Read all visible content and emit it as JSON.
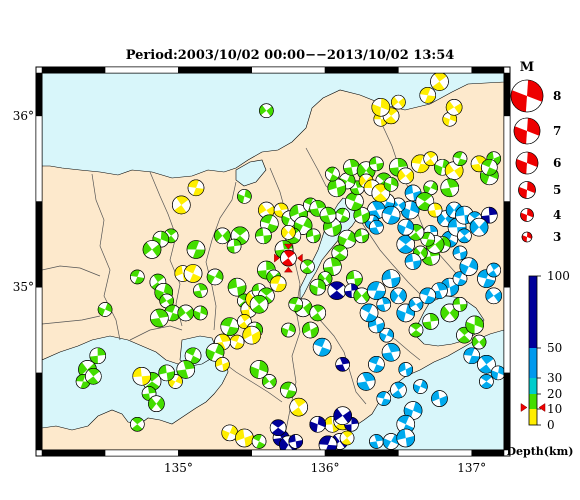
{
  "title": "Period:2003/10/02 00:00−−2013/10/02 13:54",
  "axes": {
    "lat_labels": [
      {
        "text": "36°",
        "value": 36
      },
      {
        "text": "35°",
        "value": 35
      }
    ],
    "lon_labels": [
      {
        "text": "135°",
        "value": 135
      },
      {
        "text": "136°",
        "value": 136
      },
      {
        "text": "137°",
        "value": 137
      }
    ]
  },
  "magnitude_legend": {
    "title": "M",
    "items": [
      {
        "label": "8",
        "m": 8
      },
      {
        "label": "7",
        "m": 7
      },
      {
        "label": "6",
        "m": 6
      },
      {
        "label": "5",
        "m": 5
      },
      {
        "label": "4",
        "m": 4
      },
      {
        "label": "3",
        "m": 3
      }
    ]
  },
  "depth_scale": {
    "title": "Depth(km)",
    "ticks": [
      {
        "label": "100",
        "v": 100
      },
      {
        "label": "50",
        "v": 50
      },
      {
        "label": "30",
        "v": 30
      },
      {
        "label": "20",
        "v": 20
      },
      {
        "label": "10",
        "v": 10
      },
      {
        "label": "0",
        "v": 0
      }
    ],
    "bands": [
      {
        "from": 0,
        "to": 10,
        "color": "#ffee00"
      },
      {
        "from": 10,
        "to": 20,
        "color": "#44dd00"
      },
      {
        "from": 20,
        "to": 30,
        "color": "#00cccc"
      },
      {
        "from": 30,
        "to": 50,
        "color": "#0099ee"
      },
      {
        "from": 50,
        "to": 100,
        "color": "#000099"
      }
    ],
    "current_event_depth": 11
  },
  "colors": {
    "land": "#fde9cc",
    "sea": "#d8f6fa",
    "highlight": "#ee0000"
  },
  "events": [
    {
      "lon": 135.6,
      "lat": 36.03,
      "c": "g"
    },
    {
      "lon": 135.12,
      "lat": 35.58,
      "c": "y"
    },
    {
      "lon": 135.02,
      "lat": 35.48,
      "c": "y"
    },
    {
      "lon": 135.45,
      "lat": 35.53,
      "c": "g"
    },
    {
      "lon": 135.6,
      "lat": 35.45,
      "c": "y"
    },
    {
      "lon": 135.62,
      "lat": 35.37,
      "c": "g"
    },
    {
      "lon": 135.7,
      "lat": 35.45,
      "c": "y"
    },
    {
      "lon": 135.76,
      "lat": 35.4,
      "c": "g"
    },
    {
      "lon": 135.82,
      "lat": 35.43,
      "c": "g"
    },
    {
      "lon": 135.9,
      "lat": 35.48,
      "c": "g"
    },
    {
      "lon": 135.95,
      "lat": 35.46,
      "c": "g"
    },
    {
      "lon": 135.85,
      "lat": 35.36,
      "c": "g"
    },
    {
      "lon": 135.92,
      "lat": 35.3,
      "c": "g"
    },
    {
      "lon": 135.78,
      "lat": 35.3,
      "c": "g"
    },
    {
      "lon": 135.72,
      "lat": 35.22,
      "c": "g"
    },
    {
      "lon": 135.75,
      "lat": 35.32,
      "c": "y"
    },
    {
      "lon": 135.58,
      "lat": 35.3,
      "c": "g"
    },
    {
      "lon": 135.42,
      "lat": 35.3,
      "c": "g"
    },
    {
      "lon": 135.38,
      "lat": 35.24,
      "c": "g"
    },
    {
      "lon": 135.3,
      "lat": 35.3,
      "c": "g"
    },
    {
      "lon": 135.12,
      "lat": 35.22,
      "c": "g"
    },
    {
      "lon": 134.95,
      "lat": 35.3,
      "c": "g"
    },
    {
      "lon": 134.88,
      "lat": 35.28,
      "c": "g"
    },
    {
      "lon": 134.82,
      "lat": 35.22,
      "c": "g"
    },
    {
      "lon": 134.72,
      "lat": 35.06,
      "c": "g"
    },
    {
      "lon": 134.86,
      "lat": 35.03,
      "c": "g"
    },
    {
      "lon": 134.9,
      "lat": 34.97,
      "c": "g"
    },
    {
      "lon": 134.92,
      "lat": 34.92,
      "c": "g"
    },
    {
      "lon": 134.96,
      "lat": 34.85,
      "c": "g"
    },
    {
      "lon": 134.87,
      "lat": 34.82,
      "c": "g"
    },
    {
      "lon": 134.5,
      "lat": 34.87,
      "c": "g"
    },
    {
      "lon": 135.03,
      "lat": 35.08,
      "c": "y"
    },
    {
      "lon": 135.1,
      "lat": 35.08,
      "c": "y"
    },
    {
      "lon": 135.15,
      "lat": 34.98,
      "c": "g"
    },
    {
      "lon": 135.25,
      "lat": 35.06,
      "c": "g"
    },
    {
      "lon": 135.4,
      "lat": 35.0,
      "c": "g"
    },
    {
      "lon": 135.45,
      "lat": 34.92,
      "c": "g"
    },
    {
      "lon": 135.48,
      "lat": 34.87,
      "c": "y"
    },
    {
      "lon": 135.52,
      "lat": 34.93,
      "c": "y"
    },
    {
      "lon": 135.55,
      "lat": 34.98,
      "c": "g"
    },
    {
      "lon": 135.6,
      "lat": 34.95,
      "c": "g"
    },
    {
      "lon": 135.6,
      "lat": 35.1,
      "c": "g"
    },
    {
      "lon": 135.65,
      "lat": 35.06,
      "c": "g"
    },
    {
      "lon": 135.68,
      "lat": 35.02,
      "c": "y"
    },
    {
      "lon": 135.55,
      "lat": 34.9,
      "c": "g"
    },
    {
      "lon": 135.15,
      "lat": 34.85,
      "c": "g"
    },
    {
      "lon": 135.05,
      "lat": 34.85,
      "c": "g"
    },
    {
      "lon": 135.35,
      "lat": 34.77,
      "c": "g"
    },
    {
      "lon": 135.45,
      "lat": 34.8,
      "c": "y"
    },
    {
      "lon": 135.52,
      "lat": 34.75,
      "c": "g"
    },
    {
      "lon": 135.5,
      "lat": 34.72,
      "c": "y"
    },
    {
      "lon": 135.4,
      "lat": 34.68,
      "c": "y"
    },
    {
      "lon": 135.3,
      "lat": 34.68,
      "c": "y"
    },
    {
      "lon": 135.25,
      "lat": 34.62,
      "c": "g"
    },
    {
      "lon": 135.3,
      "lat": 34.55,
      "c": "y"
    },
    {
      "lon": 135.1,
      "lat": 34.6,
      "c": "g"
    },
    {
      "lon": 135.05,
      "lat": 34.52,
      "c": "g"
    },
    {
      "lon": 134.98,
      "lat": 34.45,
      "c": "y"
    },
    {
      "lon": 134.92,
      "lat": 34.5,
      "c": "g"
    },
    {
      "lon": 134.82,
      "lat": 34.45,
      "c": "g"
    },
    {
      "lon": 134.8,
      "lat": 34.38,
      "c": "g"
    },
    {
      "lon": 134.85,
      "lat": 34.32,
      "c": "g"
    },
    {
      "lon": 134.75,
      "lat": 34.48,
      "c": "y"
    },
    {
      "lon": 134.72,
      "lat": 34.2,
      "c": "g"
    },
    {
      "lon": 134.45,
      "lat": 34.6,
      "c": "g"
    },
    {
      "lon": 134.38,
      "lat": 34.52,
      "c": "g"
    },
    {
      "lon": 134.35,
      "lat": 34.45,
      "c": "g"
    },
    {
      "lon": 134.42,
      "lat": 34.48,
      "c": "g"
    },
    {
      "lon": 135.55,
      "lat": 34.52,
      "c": "g"
    },
    {
      "lon": 135.62,
      "lat": 34.45,
      "c": "g"
    },
    {
      "lon": 135.75,
      "lat": 34.4,
      "c": "g"
    },
    {
      "lon": 135.82,
      "lat": 34.3,
      "c": "y"
    },
    {
      "lon": 135.75,
      "lat": 34.75,
      "c": "g"
    },
    {
      "lon": 135.9,
      "lat": 34.75,
      "c": "g"
    },
    {
      "lon": 135.98,
      "lat": 34.65,
      "c": "b"
    },
    {
      "lon": 136.12,
      "lat": 34.55,
      "c": "n"
    },
    {
      "lon": 135.35,
      "lat": 34.15,
      "c": "y"
    },
    {
      "lon": 135.45,
      "lat": 34.12,
      "c": "y"
    },
    {
      "lon": 135.55,
      "lat": 34.1,
      "c": "g"
    },
    {
      "lon": 135.7,
      "lat": 34.12,
      "c": "n"
    },
    {
      "lon": 135.75,
      "lat": 34.08,
      "c": "n"
    },
    {
      "lon": 135.8,
      "lat": 34.1,
      "c": "n"
    },
    {
      "lon": 135.68,
      "lat": 34.18,
      "c": "n"
    },
    {
      "lon": 135.22,
      "lat": 34.05,
      "c": "y"
    },
    {
      "lon": 135.1,
      "lat": 34.05,
      "c": "g"
    },
    {
      "lon": 136.05,
      "lat": 34.2,
      "c": "y"
    },
    {
      "lon": 136.12,
      "lat": 34.22,
      "c": "y"
    },
    {
      "lon": 136.18,
      "lat": 34.2,
      "c": "n"
    },
    {
      "lon": 136.1,
      "lat": 34.1,
      "c": "n"
    },
    {
      "lon": 136.02,
      "lat": 34.08,
      "c": "n"
    },
    {
      "lon": 136.15,
      "lat": 34.12,
      "c": "y"
    },
    {
      "lon": 135.95,
      "lat": 34.2,
      "c": "n"
    },
    {
      "lon": 136.12,
      "lat": 34.25,
      "c": "n"
    },
    {
      "lon": 136.4,
      "lat": 34.35,
      "c": "b"
    },
    {
      "lon": 136.5,
      "lat": 34.4,
      "c": "b"
    },
    {
      "lon": 136.6,
      "lat": 34.28,
      "c": "b"
    },
    {
      "lon": 136.55,
      "lat": 34.52,
      "c": "b"
    },
    {
      "lon": 136.35,
      "lat": 34.55,
      "c": "b"
    },
    {
      "lon": 136.45,
      "lat": 34.62,
      "c": "b"
    },
    {
      "lon": 136.42,
      "lat": 34.72,
      "c": "b"
    },
    {
      "lon": 136.35,
      "lat": 34.78,
      "c": "b"
    },
    {
      "lon": 136.3,
      "lat": 34.85,
      "c": "b"
    },
    {
      "lon": 136.4,
      "lat": 34.9,
      "c": "b"
    },
    {
      "lon": 136.5,
      "lat": 34.95,
      "c": "b"
    },
    {
      "lon": 136.45,
      "lat": 35.05,
      "c": "b"
    },
    {
      "lon": 136.62,
      "lat": 34.75,
      "c": "g"
    },
    {
      "lon": 136.72,
      "lat": 34.8,
      "c": "g"
    },
    {
      "lon": 136.85,
      "lat": 34.85,
      "c": "g"
    },
    {
      "lon": 136.92,
      "lat": 34.9,
      "c": "g"
    },
    {
      "lon": 136.95,
      "lat": 34.72,
      "c": "g"
    },
    {
      "lon": 137.02,
      "lat": 34.78,
      "c": "g"
    },
    {
      "lon": 137.05,
      "lat": 34.68,
      "c": "g"
    },
    {
      "lon": 137.0,
      "lat": 34.6,
      "c": "b"
    },
    {
      "lon": 137.1,
      "lat": 34.55,
      "c": "b"
    },
    {
      "lon": 137.18,
      "lat": 34.5,
      "c": "b"
    },
    {
      "lon": 137.15,
      "lat": 34.95,
      "c": "b"
    },
    {
      "lon": 137.1,
      "lat": 35.05,
      "c": "b"
    },
    {
      "lon": 137.15,
      "lat": 35.1,
      "c": "b"
    },
    {
      "lon": 137.2,
      "lat": 35.15,
      "c": "b"
    },
    {
      "lon": 136.85,
      "lat": 35.0,
      "c": "b"
    },
    {
      "lon": 136.92,
      "lat": 35.05,
      "c": "b"
    },
    {
      "lon": 136.78,
      "lat": 34.98,
      "c": "b"
    },
    {
      "lon": 136.98,
      "lat": 35.12,
      "c": "b"
    },
    {
      "lon": 136.92,
      "lat": 35.2,
      "c": "b"
    },
    {
      "lon": 136.85,
      "lat": 35.28,
      "c": "b"
    },
    {
      "lon": 136.72,
      "lat": 35.18,
      "c": "g"
    },
    {
      "lon": 136.65,
      "lat": 35.2,
      "c": "g"
    },
    {
      "lon": 136.6,
      "lat": 35.15,
      "c": "b"
    },
    {
      "lon": 136.55,
      "lat": 35.25,
      "c": "b"
    },
    {
      "lon": 136.72,
      "lat": 35.32,
      "c": "b"
    },
    {
      "lon": 136.82,
      "lat": 35.4,
      "c": "b"
    },
    {
      "lon": 136.9,
      "lat": 35.35,
      "c": "b"
    },
    {
      "lon": 136.95,
      "lat": 35.3,
      "c": "b"
    },
    {
      "lon": 136.8,
      "lat": 35.25,
      "c": "g"
    },
    {
      "lon": 136.75,
      "lat": 35.25,
      "c": "g"
    },
    {
      "lon": 136.7,
      "lat": 35.28,
      "c": "g"
    },
    {
      "lon": 136.62,
      "lat": 35.32,
      "c": "g"
    },
    {
      "lon": 136.58,
      "lat": 35.45,
      "c": "b"
    },
    {
      "lon": 136.5,
      "lat": 35.48,
      "c": "b"
    },
    {
      "lon": 136.42,
      "lat": 35.5,
      "c": "b"
    },
    {
      "lon": 136.35,
      "lat": 35.45,
      "c": "b"
    },
    {
      "lon": 136.32,
      "lat": 35.38,
      "c": "b"
    },
    {
      "lon": 136.25,
      "lat": 35.42,
      "c": "g"
    },
    {
      "lon": 136.2,
      "lat": 35.5,
      "c": "g"
    },
    {
      "lon": 136.22,
      "lat": 35.58,
      "c": "g"
    },
    {
      "lon": 136.15,
      "lat": 35.62,
      "c": "g"
    },
    {
      "lon": 136.08,
      "lat": 35.58,
      "c": "g"
    },
    {
      "lon": 136.05,
      "lat": 35.66,
      "c": "g"
    },
    {
      "lon": 136.18,
      "lat": 35.7,
      "c": "g"
    },
    {
      "lon": 136.28,
      "lat": 35.68,
      "c": "g"
    },
    {
      "lon": 136.35,
      "lat": 35.72,
      "c": "g"
    },
    {
      "lon": 136.4,
      "lat": 35.62,
      "c": "g"
    },
    {
      "lon": 136.5,
      "lat": 35.7,
      "c": "g"
    },
    {
      "lon": 136.28,
      "lat": 35.62,
      "c": "y"
    },
    {
      "lon": 136.32,
      "lat": 35.58,
      "c": "y"
    },
    {
      "lon": 136.38,
      "lat": 35.55,
      "c": "y"
    },
    {
      "lon": 136.45,
      "lat": 35.6,
      "c": "g"
    },
    {
      "lon": 136.55,
      "lat": 35.65,
      "c": "y"
    },
    {
      "lon": 136.65,
      "lat": 35.72,
      "c": "y"
    },
    {
      "lon": 136.72,
      "lat": 35.75,
      "c": "y"
    },
    {
      "lon": 136.8,
      "lat": 35.7,
      "c": "g"
    },
    {
      "lon": 136.88,
      "lat": 35.68,
      "c": "y"
    },
    {
      "lon": 136.92,
      "lat": 35.75,
      "c": "g"
    },
    {
      "lon": 137.05,
      "lat": 35.72,
      "c": "y"
    },
    {
      "lon": 137.12,
      "lat": 35.65,
      "c": "g"
    },
    {
      "lon": 137.15,
      "lat": 35.75,
      "c": "g"
    },
    {
      "lon": 137.12,
      "lat": 35.7,
      "c": "g"
    },
    {
      "lon": 136.85,
      "lat": 35.58,
      "c": "g"
    },
    {
      "lon": 136.72,
      "lat": 35.58,
      "c": "g"
    },
    {
      "lon": 136.6,
      "lat": 35.55,
      "c": "b"
    },
    {
      "lon": 136.68,
      "lat": 35.5,
      "c": "g"
    },
    {
      "lon": 136.75,
      "lat": 35.45,
      "c": "y"
    },
    {
      "lon": 136.88,
      "lat": 35.45,
      "c": "b"
    },
    {
      "lon": 136.95,
      "lat": 35.42,
      "c": "b"
    },
    {
      "lon": 137.02,
      "lat": 35.4,
      "c": "b"
    },
    {
      "lon": 137.12,
      "lat": 35.42,
      "c": "n"
    },
    {
      "lon": 137.05,
      "lat": 35.35,
      "c": "b"
    },
    {
      "lon": 136.38,
      "lat": 35.98,
      "c": "y"
    },
    {
      "lon": 136.45,
      "lat": 36.0,
      "c": "y"
    },
    {
      "lon": 136.38,
      "lat": 36.05,
      "c": "y"
    },
    {
      "lon": 136.5,
      "lat": 36.08,
      "c": "y"
    },
    {
      "lon": 136.7,
      "lat": 36.12,
      "c": "y"
    },
    {
      "lon": 136.78,
      "lat": 36.2,
      "c": "y"
    },
    {
      "lon": 136.85,
      "lat": 35.98,
      "c": "y"
    },
    {
      "lon": 136.88,
      "lat": 36.05,
      "c": "y"
    },
    {
      "lon": 136.45,
      "lat": 35.42,
      "c": "b"
    },
    {
      "lon": 136.35,
      "lat": 35.35,
      "c": "b"
    },
    {
      "lon": 136.55,
      "lat": 35.35,
      "c": "b"
    },
    {
      "lon": 136.05,
      "lat": 35.35,
      "c": "g"
    },
    {
      "lon": 136.12,
      "lat": 35.42,
      "c": "g"
    },
    {
      "lon": 136.02,
      "lat": 35.42,
      "c": "g"
    },
    {
      "lon": 136.15,
      "lat": 35.28,
      "c": "g"
    },
    {
      "lon": 136.25,
      "lat": 35.3,
      "c": "g"
    },
    {
      "lon": 136.1,
      "lat": 35.2,
      "c": "g"
    },
    {
      "lon": 136.05,
      "lat": 35.12,
      "c": "g"
    },
    {
      "lon": 136.0,
      "lat": 35.05,
      "c": "g"
    },
    {
      "lon": 136.2,
      "lat": 35.05,
      "c": "g"
    },
    {
      "lon": 136.08,
      "lat": 34.98,
      "c": "n"
    },
    {
      "lon": 136.18,
      "lat": 34.98,
      "c": "n"
    },
    {
      "lon": 136.25,
      "lat": 34.95,
      "c": "g"
    },
    {
      "lon": 136.35,
      "lat": 34.98,
      "c": "b"
    },
    {
      "lon": 135.88,
      "lat": 35.12,
      "c": "g"
    },
    {
      "lon": 135.95,
      "lat": 35.0,
      "c": "g"
    },
    {
      "lon": 135.85,
      "lat": 34.88,
      "c": "g"
    },
    {
      "lon": 135.8,
      "lat": 34.9,
      "c": "g"
    },
    {
      "lon": 135.95,
      "lat": 34.85,
      "c": "g"
    },
    {
      "lon": 136.55,
      "lat": 34.85,
      "c": "b"
    },
    {
      "lon": 136.62,
      "lat": 34.9,
      "c": "b"
    },
    {
      "lon": 136.7,
      "lat": 34.95,
      "c": "b"
    },
    {
      "lon": 136.28,
      "lat": 34.45,
      "c": "b"
    },
    {
      "lon": 136.65,
      "lat": 34.42,
      "c": "b"
    },
    {
      "lon": 136.78,
      "lat": 34.35,
      "c": "b"
    },
    {
      "lon": 136.55,
      "lat": 34.2,
      "c": "b"
    },
    {
      "lon": 136.35,
      "lat": 34.1,
      "c": "b"
    },
    {
      "lon": 136.45,
      "lat": 34.1,
      "c": "b"
    },
    {
      "lon": 136.55,
      "lat": 34.12,
      "c": "b"
    },
    {
      "lon": 137.1,
      "lat": 34.45,
      "c": "b"
    },
    {
      "lon": 137.2,
      "lat": 34.42,
      "c": "b"
    }
  ],
  "highlight_event": {
    "lon": 135.75,
    "lat": 35.17
  }
}
